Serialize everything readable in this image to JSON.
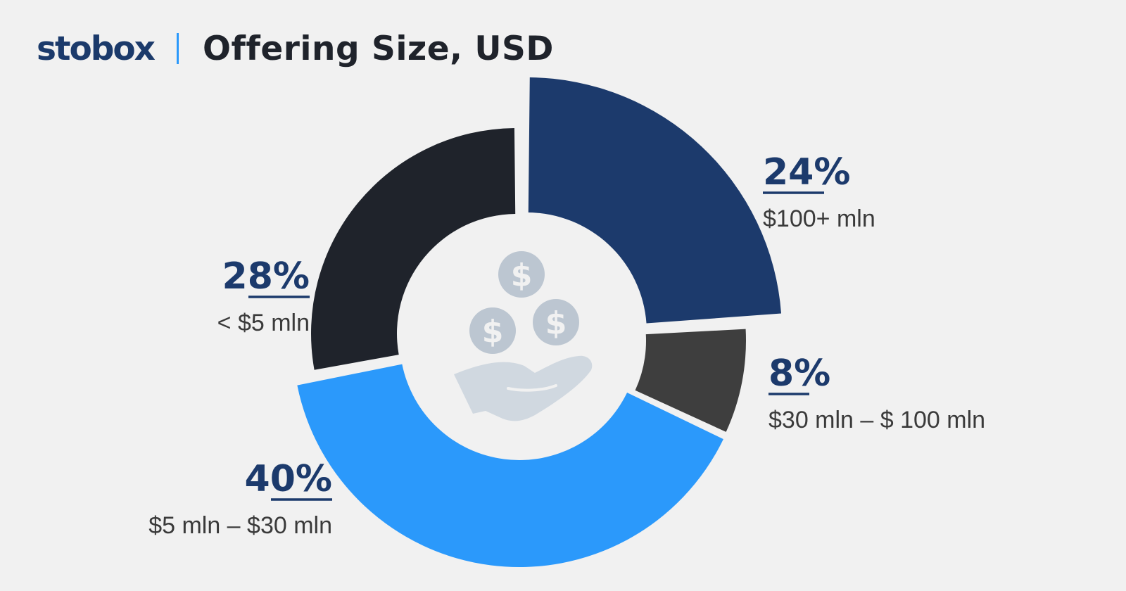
{
  "header": {
    "logo": "stobox",
    "title": "Offering Size, USD"
  },
  "chart_data": {
    "type": "pie",
    "title": "Offering Size, USD",
    "slices": [
      {
        "label": "$100+ mln",
        "value": 24,
        "display": "24%",
        "color": "#1c3a6c"
      },
      {
        "label": "$30 mln – $ 100 mln",
        "value": 8,
        "display": "8%",
        "color": "#3e3e3e"
      },
      {
        "label": "$5 mln – $30 mln",
        "value": 40,
        "display": "40%",
        "color": "#2b99fb"
      },
      {
        "label": "< $5 mln",
        "value": 28,
        "display": "28%",
        "color": "#1f232b"
      }
    ],
    "center_icon": "hand-with-coins-icon",
    "center_icon_color": "#bcc6d1"
  }
}
